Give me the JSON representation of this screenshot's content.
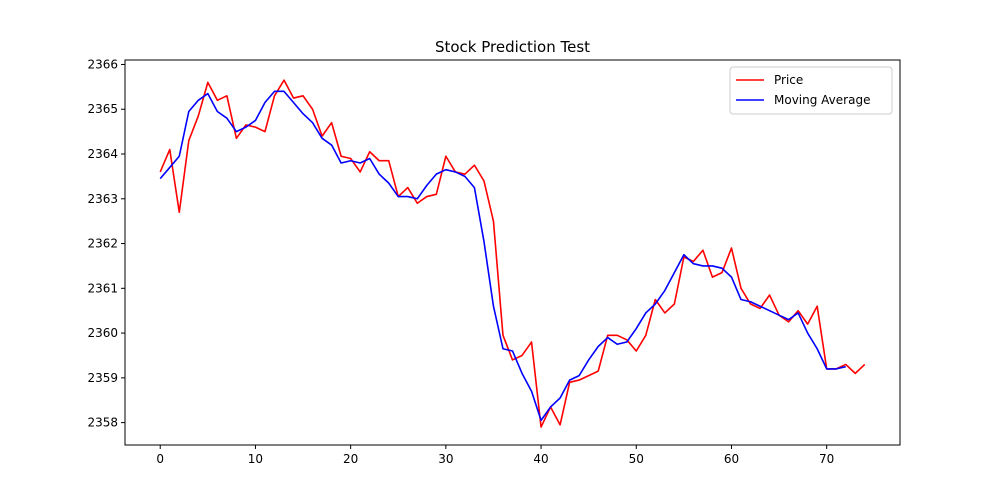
{
  "chart_data": {
    "type": "line",
    "title": "Stock Prediction Test",
    "xlabel": "",
    "ylabel": "",
    "xlim": [
      -3.7,
      77.7
    ],
    "ylim": [
      2357.5,
      2366.1
    ],
    "xticks": [
      0,
      10,
      20,
      30,
      40,
      50,
      60,
      70
    ],
    "yticks": [
      2358,
      2359,
      2360,
      2361,
      2362,
      2363,
      2364,
      2365,
      2366
    ],
    "grid": false,
    "legend": {
      "location": "top-right"
    },
    "series": [
      {
        "name": "Price",
        "color": "#ff0000",
        "x": [
          0,
          1,
          2,
          3,
          4,
          5,
          6,
          7,
          8,
          9,
          10,
          11,
          12,
          13,
          14,
          15,
          16,
          17,
          18,
          19,
          20,
          21,
          22,
          23,
          24,
          25,
          26,
          27,
          28,
          29,
          30,
          31,
          32,
          33,
          34,
          35,
          36,
          37,
          38,
          39,
          40,
          41,
          42,
          43,
          44,
          45,
          46,
          47,
          48,
          49,
          50,
          51,
          52,
          53,
          54,
          55,
          56,
          57,
          58,
          59,
          60,
          61,
          62,
          63,
          64,
          65,
          66,
          67,
          68,
          69,
          70,
          71,
          72,
          73,
          74
        ],
        "values": [
          2363.6,
          2364.1,
          2362.7,
          2364.3,
          2364.85,
          2365.6,
          2365.2,
          2365.3,
          2364.35,
          2364.65,
          2364.6,
          2364.5,
          2365.3,
          2365.65,
          2365.25,
          2365.3,
          2365.0,
          2364.4,
          2364.7,
          2363.95,
          2363.9,
          2363.6,
          2364.05,
          2363.85,
          2363.85,
          2363.05,
          2363.25,
          2362.9,
          2363.05,
          2363.1,
          2363.95,
          2363.6,
          2363.55,
          2363.75,
          2363.4,
          2362.5,
          2359.95,
          2359.4,
          2359.5,
          2359.8,
          2357.9,
          2358.35,
          2357.95,
          2358.9,
          2358.95,
          2359.05,
          2359.15,
          2359.95,
          2359.95,
          2359.85,
          2359.6,
          2359.95,
          2360.75,
          2360.45,
          2360.65,
          2361.7,
          2361.6,
          2361.85,
          2361.25,
          2361.35,
          2361.9,
          2361.0,
          2360.65,
          2360.55,
          2360.85,
          2360.4,
          2360.25,
          2360.5,
          2360.2,
          2360.6,
          2359.2,
          2359.2,
          2359.3,
          2359.1,
          2359.3
        ]
      },
      {
        "name": "Moving Average",
        "color": "#0000ff",
        "x": [
          0,
          1,
          2,
          3,
          4,
          5,
          6,
          7,
          8,
          9,
          10,
          11,
          12,
          13,
          14,
          15,
          16,
          17,
          18,
          19,
          20,
          21,
          22,
          23,
          24,
          25,
          26,
          27,
          28,
          29,
          30,
          31,
          32,
          33,
          34,
          35,
          36,
          37,
          38,
          39,
          40,
          41,
          42,
          43,
          44,
          45,
          46,
          47,
          48,
          49,
          50,
          51,
          52,
          53,
          54,
          55,
          56,
          57,
          58,
          59,
          60,
          61,
          62,
          63,
          64,
          65,
          66,
          67,
          68,
          69,
          70,
          71,
          72
        ],
        "values": [
          2363.45,
          2363.7,
          2363.95,
          2364.95,
          2365.2,
          2365.35,
          2364.95,
          2364.8,
          2364.5,
          2364.6,
          2364.75,
          2365.15,
          2365.4,
          2365.4,
          2365.15,
          2364.9,
          2364.7,
          2364.35,
          2364.2,
          2363.8,
          2363.85,
          2363.8,
          2363.9,
          2363.55,
          2363.35,
          2363.05,
          2363.05,
          2363.0,
          2363.3,
          2363.55,
          2363.65,
          2363.6,
          2363.5,
          2363.25,
          2362.05,
          2360.6,
          2359.65,
          2359.6,
          2359.1,
          2358.7,
          2358.05,
          2358.35,
          2358.55,
          2358.95,
          2359.05,
          2359.4,
          2359.7,
          2359.9,
          2359.75,
          2359.8,
          2360.1,
          2360.45,
          2360.65,
          2360.95,
          2361.35,
          2361.75,
          2361.55,
          2361.5,
          2361.5,
          2361.45,
          2361.25,
          2360.75,
          2360.7,
          2360.6,
          2360.5,
          2360.4,
          2360.3,
          2360.45,
          2360.0,
          2359.65,
          2359.2,
          2359.2,
          2359.25
        ]
      }
    ]
  }
}
